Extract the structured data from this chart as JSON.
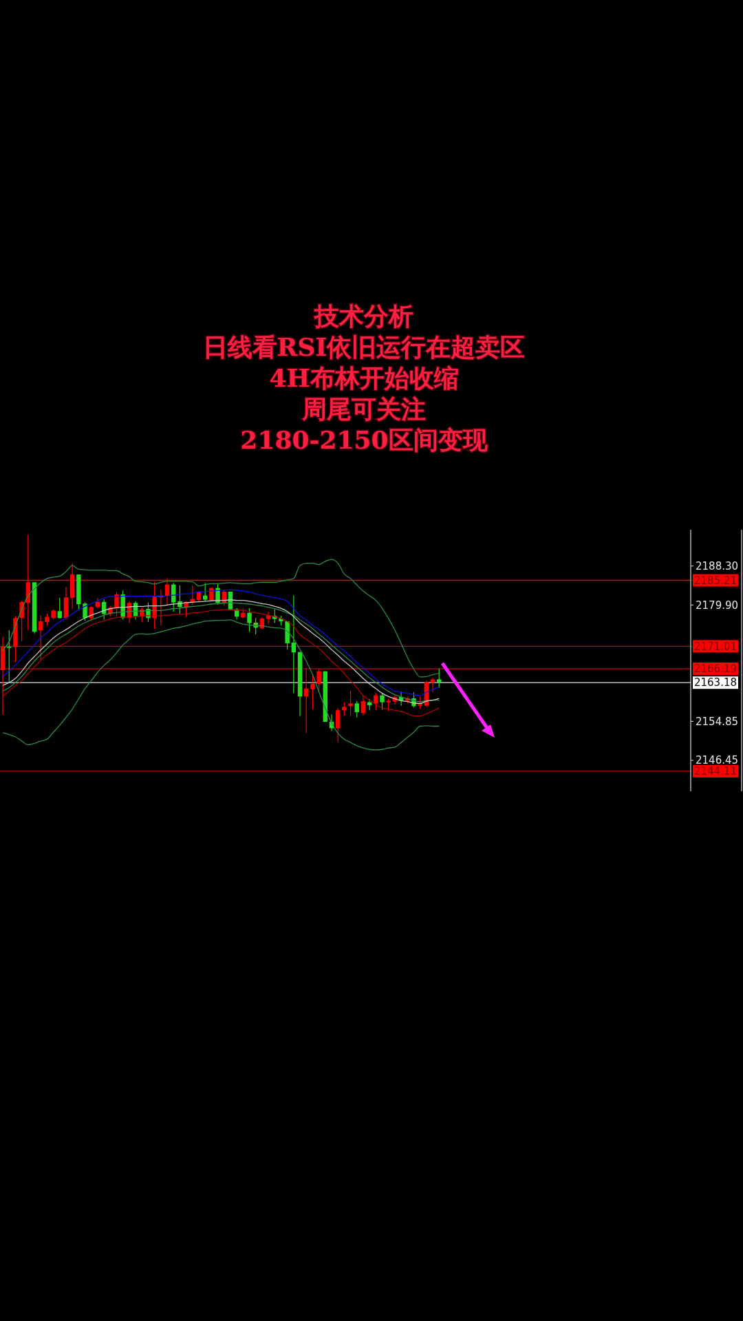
{
  "chart_data": {
    "type": "candlestick",
    "title": "技术分析",
    "annotations": [
      "日线看RSI依旧运行在超卖区",
      "4H布林开始收缩",
      "周尾可关注",
      "2180-2150区间变现"
    ],
    "categories": [
      null,
      null,
      null,
      null,
      null,
      null,
      null,
      null,
      null,
      null,
      null,
      null,
      null,
      null,
      null,
      null,
      null,
      null,
      null,
      null,
      null,
      null,
      null,
      null,
      null,
      null,
      null,
      null,
      null,
      null,
      null,
      null,
      null,
      null,
      null,
      null,
      null,
      null,
      null,
      null,
      null,
      null,
      null,
      null,
      null,
      null,
      null,
      null,
      null,
      null,
      null,
      null,
      null,
      null,
      null,
      null,
      null,
      null,
      null,
      null,
      null,
      null,
      null,
      null,
      null,
      null,
      null,
      null,
      null,
      null
    ],
    "ylim": [
      2139.8,
      2196.1
    ],
    "yticks": [
      {
        "value": 2188.3,
        "label": "2188.30"
      },
      {
        "value": 2179.9,
        "label": "2179.90"
      },
      2154.85,
      2146.45
    ],
    "series": [
      {
        "type": "line",
        "color": "#2f8a48",
        "values": [
          2170.1,
          2172.0,
          2175.5,
          2179.0,
          2181.9,
          2183.4,
          2184.7,
          2185.6,
          2185.9,
          2186.1,
          2187.1,
          2188.4,
          2187.6,
          2187.5,
          2187.4,
          2187.4,
          2187.4,
          2187.3,
          2187.3,
          2186.6,
          2186.0,
          2185.0,
          2184.9,
          2184.7,
          2184.4,
          2184.8,
          2185.0,
          2185.0,
          2185.0,
          2185.0,
          2184.9,
          2184.0,
          2184.3,
          2184.5,
          2184.5,
          2184.6,
          2184.7,
          2184.6,
          2184.5,
          2184.5,
          2184.7,
          2184.8,
          2184.8,
          2184.8,
          2185.0,
          2185.3,
          2185.6,
          2188.4,
          2188.9,
          2188.9,
          2188.6,
          2189.3,
          2189.7,
          2188.9,
          2186.6,
          2185.6,
          2184.2,
          2182.9,
          2181.9,
          2180.9,
          2179.2,
          2177.0,
          2174.5,
          2171.6,
          2168.6,
          2166.1,
          2164.4,
          2164.5,
          2164.9,
          2165.2
        ]
      },
      {
        "type": "line",
        "color": "#2f8a48",
        "values": [
          2152.4,
          2152.0,
          2151.5,
          2150.6,
          2149.8,
          2150.1,
          2150.6,
          2151.0,
          2152.5,
          2154.0,
          2155.7,
          2157.5,
          2159.7,
          2161.9,
          2163.6,
          2165.4,
          2166.9,
          2168.1,
          2169.6,
          2171.3,
          2172.5,
          2173.6,
          2173.7,
          2173.6,
          2173.8,
          2174.1,
          2174.5,
          2174.9,
          2175.1,
          2175.4,
          2175.8,
          2176.1,
          2176.4,
          2176.5,
          2176.6,
          2176.6,
          2176.7,
          2176.2,
          2175.8,
          2175.6,
          2175.5,
          2175.4,
          2175.2,
          2175.0,
          2174.9,
          2174.3,
          2172.6,
          2170.3,
          2167.8,
          2164.9,
          2161.2,
          2157.7,
          2154.5,
          2152.3,
          2151.0,
          2150.3,
          2149.6,
          2149.1,
          2148.8,
          2148.7,
          2148.8,
          2149.1,
          2149.3,
          2150.3,
          2151.4,
          2152.5,
          2153.8,
          2153.9,
          2153.8,
          2153.8
        ]
      },
      {
        "type": "line",
        "color": "#2f8a48",
        "values": [
          2161.4,
          2162.1,
          2163.2,
          2164.5,
          2166.2,
          2167.8,
          2169.2,
          2170.5,
          2171.8,
          2172.8,
          2173.6,
          2174.5,
          2175.4,
          2176.1,
          2176.7,
          2177.2,
          2177.7,
          2178.1,
          2178.3,
          2178.4,
          2178.5,
          2178.6,
          2178.6,
          2178.7,
          2178.7,
          2178.7,
          2178.9,
          2179.1,
          2179.2,
          2179.4,
          2179.6,
          2179.7,
          2179.9,
          2180.1,
          2180.2,
          2180.3,
          2180.4,
          2180.3,
          2180.2,
          2180.1,
          2179.9,
          2179.7,
          2179.4,
          2179.1,
          2178.7,
          2178.2,
          2177.7,
          2176.7,
          2175.8,
          2174.8,
          2173.6,
          2172.5,
          2171.3,
          2170.1,
          2169.0,
          2167.8,
          2166.6,
          2165.4,
          2164.2,
          2163.2,
          2162.2,
          2161.3,
          2160.6,
          2160.1,
          2159.7,
          2159.3,
          2159.1,
          2159.3,
          2159.4,
          2159.4
        ]
      },
      {
        "type": "line",
        "color": "#1010d8",
        "values": [
          2164.6,
          2165.7,
          2167.0,
          2168.4,
          2169.8,
          2171.3,
          2172.8,
          2174.0,
          2175.3,
          2176.3,
          2177.1,
          2178.0,
          2178.9,
          2179.6,
          2180.2,
          2180.8,
          2181.4,
          2181.7,
          2181.7,
          2181.8,
          2181.8,
          2181.8,
          2181.8,
          2181.8,
          2181.8,
          2181.8,
          2181.9,
          2182.0,
          2182.2,
          2182.3,
          2182.5,
          2182.7,
          2182.8,
          2182.9,
          2183.0,
          2183.1,
          2183.2,
          2183.1,
          2182.9,
          2182.7,
          2182.3,
          2182.0,
          2181.7,
          2181.5,
          2181.2,
          2180.7,
          2179.2,
          2177.6,
          2176.7,
          2175.5,
          2174.6,
          2173.5,
          2172.3,
          2171.1,
          2170.0,
          2168.8,
          2167.5,
          2166.4,
          2165.2,
          2163.9,
          2162.9,
          2162.1,
          2161.3,
          2161.1,
          2160.9,
          2160.6,
          2160.4,
          2161.1,
          2161.7,
          2162.3
        ]
      },
      {
        "type": "line",
        "color": "#c8c8c8",
        "values": [
          2162.6,
          2163.2,
          2164.1,
          2165.6,
          2167.4,
          2168.8,
          2170.2,
          2171.5,
          2172.8,
          2173.8,
          2174.6,
          2175.5,
          2176.4,
          2177.1,
          2177.7,
          2178.2,
          2178.7,
          2179.1,
          2179.3,
          2179.4,
          2179.5,
          2179.6,
          2179.6,
          2179.7,
          2179.7,
          2179.7,
          2179.9,
          2180.1,
          2180.2,
          2180.4,
          2180.5,
          2180.6,
          2180.7,
          2180.8,
          2180.9,
          2180.9,
          2181.0,
          2180.9,
          2180.9,
          2180.7,
          2180.5,
          2180.2,
          2180.0,
          2179.6,
          2179.2,
          2178.5,
          2177.4,
          2176.0,
          2174.9,
          2173.8,
          2172.8,
          2171.6,
          2170.3,
          2169.1,
          2167.8,
          2166.7,
          2165.4,
          2164.1,
          2162.9,
          2161.9,
          2160.9,
          2160.2,
          2159.7,
          2159.3,
          2159.1,
          2158.8,
          2158.7,
          2159.2,
          2159.4,
          2159.8
        ]
      },
      {
        "type": "line",
        "color": "#b00000",
        "values": [
          2160.2,
          2161.4,
          2162.6,
          2163.6,
          2165.1,
          2166.6,
          2168.0,
          2169.2,
          2170.2,
          2171.1,
          2171.8,
          2172.8,
          2173.8,
          2174.8,
          2175.6,
          2176.1,
          2176.5,
          2176.9,
          2177.2,
          2177.3,
          2177.2,
          2177.4,
          2177.5,
          2177.6,
          2177.6,
          2177.6,
          2177.7,
          2177.8,
          2177.9,
          2178.0,
          2178.2,
          2178.3,
          2178.5,
          2178.7,
          2178.8,
          2178.9,
          2178.9,
          2178.8,
          2178.7,
          2178.5,
          2178.2,
          2178.0,
          2177.7,
          2177.4,
          2177.0,
          2176.4,
          2175.3,
          2173.5,
          2172.5,
          2171.5,
          2170.5,
          2169.2,
          2167.8,
          2166.6,
          2165.1,
          2163.6,
          2162.1,
          2160.4,
          2159.4,
          2158.5,
          2157.7,
          2157.5,
          2157.2,
          2157.0,
          2156.5,
          2156.0,
          2156.0,
          2156.5,
          2157.1,
          2157.7
        ]
      },
      {
        "type": "candlestick",
        "colors": [
          "#ff0000",
          "#22dd22",
          "#ff0000",
          "#ff0000",
          "#ff0000",
          "#22dd22",
          "#ff0000",
          "#ff0000",
          "#ff0000",
          "#22dd22",
          "#ff0000",
          "#ff0000",
          "#22dd22",
          "#22dd22",
          "#ff0000",
          "#ff0000",
          "#22dd22",
          "#ff0000",
          "#ff0000",
          "#22dd22",
          "#ff0000",
          "#22dd22",
          "#ff0000",
          "#22dd22",
          "#ff0000",
          "#ff0000",
          "#ff0000",
          "#22dd22",
          "#22dd22",
          "#ff0000",
          "#ff0000",
          "#ff0000",
          "#22dd22",
          "#ff0000",
          "#22dd22",
          "#ff0000",
          "#22dd22",
          "#22dd22",
          "#ff0000",
          "#22dd22",
          "#22dd22",
          "#ff0000",
          "#ff0000",
          "#22dd22",
          "#22dd22",
          "#22dd22",
          "#22dd22",
          "#22dd22",
          "#ff0000",
          "#ff0000",
          "#ff0000",
          "#22dd22",
          "#22dd22",
          "#ff0000",
          "#ff0000",
          "#ff0000",
          "#22dd22",
          "#ff0000",
          "#22dd22",
          "#ff0000",
          "#22dd22",
          "#ff0000",
          "#ff0000",
          "#22dd22",
          "#ff0000",
          "#22dd22",
          "#ff0000",
          "#ff0000",
          "#ff0000",
          "#22dd22"
        ],
        "ohlc": [
          [
            2165.87,
            2173.04,
            2156.34,
            2170.92
          ],
          [
            2170.92,
            2174.52,
            2163.4,
            2170.67
          ],
          [
            2170.82,
            2177.49,
            2167.6,
            2177.09
          ],
          [
            2177.09,
            2180.8,
            2172.05,
            2180.55
          ],
          [
            2180.35,
            2195.03,
            2174.52,
            2184.8
          ],
          [
            2184.8,
            2184.8,
            2173.78,
            2174.13
          ],
          [
            2174.42,
            2177.73,
            2168.1,
            2176.4
          ],
          [
            2176.25,
            2178.08,
            2175.51,
            2177.34
          ],
          [
            2177.09,
            2178.97,
            2176.75,
            2178.72
          ],
          [
            2178.57,
            2181.44,
            2176.99,
            2177.09
          ],
          [
            2177.09,
            2183.81,
            2176.75,
            2181.54
          ],
          [
            2181.44,
            2188.85,
            2179.07,
            2186.48
          ],
          [
            2186.48,
            2186.48,
            2178.97,
            2180.06
          ],
          [
            2180.21,
            2180.45,
            2176.5,
            2177.09
          ],
          [
            2177.09,
            2179.71,
            2176.75,
            2179.46
          ],
          [
            2179.46,
            2181.44,
            2179.22,
            2180.55
          ],
          [
            2180.55,
            2181.19,
            2176.75,
            2177.98
          ],
          [
            2177.98,
            2179.71,
            2177.49,
            2179.37
          ],
          [
            2179.22,
            2182.68,
            2177.49,
            2182.18
          ],
          [
            2182.18,
            2183.02,
            2176.75,
            2177.09
          ],
          [
            2177.09,
            2180.7,
            2176.01,
            2180.35
          ],
          [
            2180.35,
            2180.7,
            2176.75,
            2177.49
          ],
          [
            2177.49,
            2179.37,
            2176.25,
            2178.97
          ],
          [
            2179.07,
            2180.45,
            2176.25,
            2177.09
          ],
          [
            2177.09,
            2184.9,
            2174.77,
            2181.69
          ],
          [
            2181.54,
            2183.17,
            2175.51,
            2181.94
          ],
          [
            2181.84,
            2185.64,
            2179.96,
            2184.31
          ],
          [
            2184.31,
            2184.65,
            2178.48,
            2180.45
          ],
          [
            2180.7,
            2184.16,
            2177.98,
            2179.46
          ],
          [
            2179.37,
            2180.7,
            2177.24,
            2180.55
          ],
          [
            2180.55,
            2184.16,
            2179.96,
            2181.19
          ],
          [
            2180.95,
            2182.92,
            2180.7,
            2182.68
          ],
          [
            2181.94,
            2184.65,
            2180.7,
            2181.05
          ],
          [
            2180.95,
            2183.67,
            2180.7,
            2183.57
          ],
          [
            2183.57,
            2184.41,
            2179.96,
            2180.35
          ],
          [
            2180.35,
            2183.02,
            2179.71,
            2182.78
          ],
          [
            2182.78,
            2182.78,
            2178.72,
            2178.82
          ],
          [
            2178.97,
            2179.22,
            2176.75,
            2177.39
          ],
          [
            2177.24,
            2179.22,
            2176.99,
            2178.23
          ],
          [
            2178.23,
            2179.22,
            2174.13,
            2176.01
          ],
          [
            2176.1,
            2177.09,
            2173.53,
            2175.02
          ],
          [
            2174.92,
            2177.24,
            2174.62,
            2176.99
          ],
          [
            2176.89,
            2178.48,
            2175.76,
            2177.73
          ],
          [
            2177.59,
            2178.97,
            2176.01,
            2176.89
          ],
          [
            2176.99,
            2177.59,
            2175.51,
            2176.4
          ],
          [
            2176.4,
            2176.4,
            2170.32,
            2171.66
          ],
          [
            2171.81,
            2181.94,
            2160.93,
            2169.68
          ],
          [
            2169.78,
            2169.78,
            2155.99,
            2160.19
          ],
          [
            2160.19,
            2166.22,
            2152.38,
            2161.92
          ],
          [
            2161.77,
            2164.74,
            2157.47,
            2162.91
          ],
          [
            2162.91,
            2166.22,
            2161.28,
            2165.63
          ],
          [
            2165.63,
            2165.63,
            2154.75,
            2154.75
          ],
          [
            2154.75,
            2156.34,
            2152.78,
            2153.37
          ],
          [
            2153.37,
            2157.72,
            2150.41,
            2157.23
          ],
          [
            2157.23,
            2158.96,
            2155.99,
            2157.97
          ],
          [
            2158.12,
            2161.43,
            2155.99,
            2158.71
          ],
          [
            2158.71,
            2159.2,
            2155.74,
            2156.83
          ],
          [
            2156.63,
            2160.44,
            2156.14,
            2159.2
          ],
          [
            2158.96,
            2159.7,
            2157.23,
            2158.31
          ],
          [
            2158.71,
            2160.93,
            2157.23,
            2160.44
          ],
          [
            2160.44,
            2160.93,
            2157.33,
            2158.96
          ],
          [
            2158.96,
            2159.7,
            2156.98,
            2159.3
          ],
          [
            2159.1,
            2160.44,
            2158.46,
            2160.09
          ],
          [
            2160.09,
            2161.28,
            2158.21,
            2159.3
          ],
          [
            2159.3,
            2160.19,
            2158.71,
            2159.8
          ],
          [
            2159.8,
            2161.08,
            2157.82,
            2158.12
          ],
          [
            2158.21,
            2160.19,
            2157.47,
            2158.61
          ],
          [
            2158.21,
            2163.65,
            2157.97,
            2163.26
          ],
          [
            2163.16,
            2164.24,
            2161.18,
            2163.9
          ],
          [
            2163.9,
            2166.22,
            2162.07,
            2163.18
          ]
        ]
      }
    ],
    "ref_lines": [
      {
        "axis": "y",
        "value": 2185.21,
        "label": "2185.21",
        "color": "#e00000"
      },
      {
        "axis": "y",
        "value": 2171.01,
        "label": "2171.01",
        "color": "#c00000"
      },
      {
        "axis": "y",
        "value": 2166.19,
        "label": "2166.19",
        "color": "#c00000"
      },
      {
        "axis": "y",
        "value": 2163.18,
        "label": "2163.18",
        "color": "#e0e0e0"
      },
      {
        "axis": "y",
        "value": 2144.11,
        "label": "2144.11",
        "color": "#c00000"
      }
    ]
  }
}
